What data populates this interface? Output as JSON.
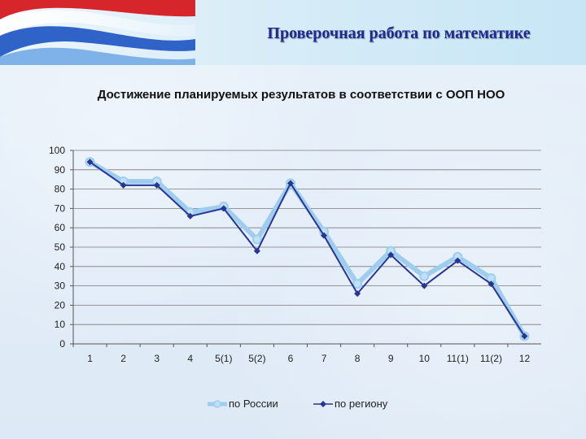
{
  "header": {
    "title": "Проверочная работа по математике"
  },
  "chart_data": {
    "type": "line",
    "title": "Достижение планируемых результатов в соответствии с ООП НОО",
    "categories": [
      "1",
      "2",
      "3",
      "4",
      "5(1)",
      "5(2)",
      "6",
      "7",
      "8",
      "9",
      "10",
      "11(1)",
      "11(2)",
      "12"
    ],
    "ylim": [
      0,
      100
    ],
    "yticks": [
      0,
      10,
      20,
      30,
      40,
      50,
      60,
      70,
      80,
      90,
      100
    ],
    "grid": true,
    "legend_position": "bottom",
    "series": [
      {
        "name": "по России",
        "color": "#9fcdf0",
        "values": [
          94,
          84,
          84,
          68,
          71,
          54,
          83,
          58,
          31,
          48,
          35,
          45,
          34,
          4
        ]
      },
      {
        "name": "по региону",
        "color": "#283593",
        "values": [
          94,
          82,
          82,
          66,
          70,
          48,
          83,
          56,
          26,
          46,
          30,
          43,
          31,
          4
        ]
      }
    ]
  }
}
